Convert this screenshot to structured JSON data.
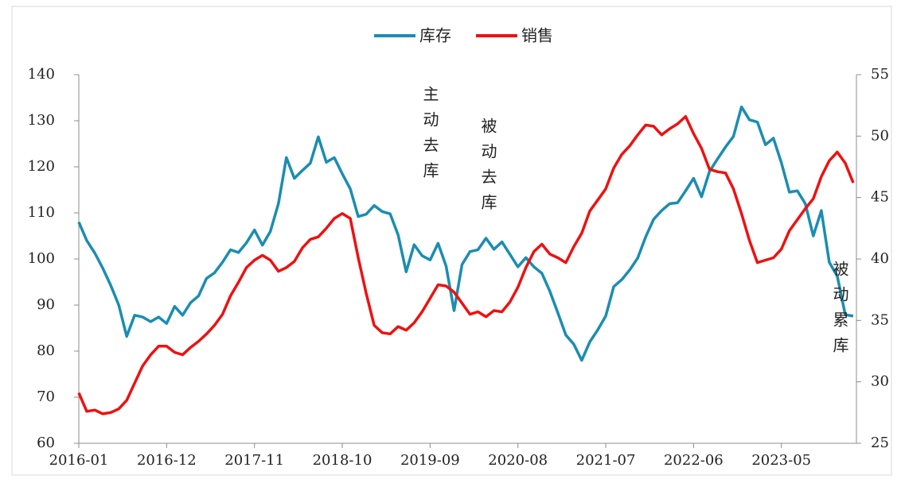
{
  "chart_data": {
    "type": "line",
    "categories": [
      "2016-01",
      null,
      null,
      null,
      null,
      null,
      null,
      null,
      null,
      null,
      null,
      "2016-12",
      null,
      null,
      null,
      null,
      null,
      null,
      null,
      null,
      null,
      null,
      "2017-11",
      null,
      null,
      null,
      null,
      null,
      null,
      null,
      null,
      null,
      null,
      "2018-10",
      null,
      null,
      null,
      null,
      null,
      null,
      null,
      null,
      null,
      null,
      "2019-09",
      null,
      null,
      null,
      null,
      null,
      null,
      null,
      null,
      null,
      null,
      "2020-08",
      null,
      null,
      null,
      null,
      null,
      null,
      null,
      null,
      null,
      null,
      "2021-07",
      null,
      null,
      null,
      null,
      null,
      null,
      null,
      null,
      null,
      null,
      "2022-06",
      null,
      null,
      null,
      null,
      null,
      null,
      null,
      null,
      null,
      null,
      "2023-05",
      null,
      null,
      null,
      null,
      null,
      null,
      null,
      null,
      null
    ],
    "series": [
      {
        "name": "库存",
        "color": "#1b8db1",
        "axis": "y",
        "values": [
          108,
          104,
          101.3,
          98,
          94.3,
          90,
          83.2,
          87.8,
          87.4,
          86.4,
          87.4,
          86,
          89.7,
          87.8,
          90.5,
          92,
          95.8,
          97,
          99.3,
          102,
          101.4,
          103.5,
          106.3,
          103,
          106,
          112,
          122,
          117.5,
          119.2,
          120.8,
          126.5,
          121,
          122,
          118.5,
          115.2,
          109.2,
          109.7,
          111.6,
          110.3,
          109.8,
          105.2,
          97.2,
          103.1,
          100.7,
          99.8,
          103.4,
          98.5,
          88.8,
          98.8,
          101.6,
          102,
          104.5,
          102.1,
          103.7,
          101,
          98.3,
          100.3,
          98.3,
          96.9,
          93,
          88.3,
          83.5,
          81.5,
          78,
          82,
          84.6,
          87.6,
          94,
          95.5,
          97.6,
          100.2,
          104.8,
          108.6,
          110.5,
          112,
          112.2,
          114.8,
          117.5,
          113.5,
          119,
          121.7,
          124.3,
          126.6,
          133,
          130.2,
          129.7,
          124.8,
          126.2,
          120.9,
          114.5,
          114.8,
          112,
          105,
          110.5,
          99.3,
          96.3,
          87.9,
          87.6
        ]
      },
      {
        "name": "销售",
        "color": "#ee1111",
        "axis": "y2",
        "values": [
          29.1,
          27.6,
          27.7,
          27.4,
          27.5,
          27.8,
          28.5,
          29.9,
          31.3,
          32.2,
          32.9,
          32.9,
          32.4,
          32.2,
          32.8,
          33.3,
          33.9,
          34.6,
          35.5,
          37,
          38.1,
          39.3,
          39.9,
          40.3,
          39.9,
          39,
          39.3,
          39.8,
          40.9,
          41.6,
          41.8,
          42.5,
          43.3,
          43.7,
          43.3,
          40.1,
          37.2,
          34.6,
          34,
          33.9,
          34.5,
          34.2,
          34.8,
          35.7,
          36.8,
          37.9,
          37.8,
          37.3,
          36.4,
          35.5,
          35.7,
          35.3,
          35.8,
          35.7,
          36.5,
          37.7,
          39.3,
          40.6,
          41.2,
          40.4,
          40.1,
          39.7,
          41,
          42.1,
          43.9,
          44.8,
          45.7,
          47.4,
          48.5,
          49.2,
          50.1,
          50.9,
          50.8,
          50.1,
          50.6,
          51,
          51.6,
          50.2,
          49,
          47.3,
          47.1,
          47,
          45.7,
          43.7,
          41.5,
          39.7,
          39.9,
          40.1,
          40.8,
          42.3,
          43.2,
          44.1,
          44.9,
          46.7,
          48,
          48.7,
          47.8,
          46.2
        ]
      }
    ],
    "ylim": [
      60,
      140
    ],
    "yticks": [
      60,
      70,
      80,
      90,
      100,
      110,
      120,
      130,
      140
    ],
    "y2lim": [
      25,
      55
    ],
    "y2ticks": [
      25,
      30,
      35,
      40,
      45,
      50,
      55
    ],
    "annotations": [
      "主动去库",
      "被动去库",
      "被动累库"
    ],
    "legend": "top",
    "grid": false
  }
}
